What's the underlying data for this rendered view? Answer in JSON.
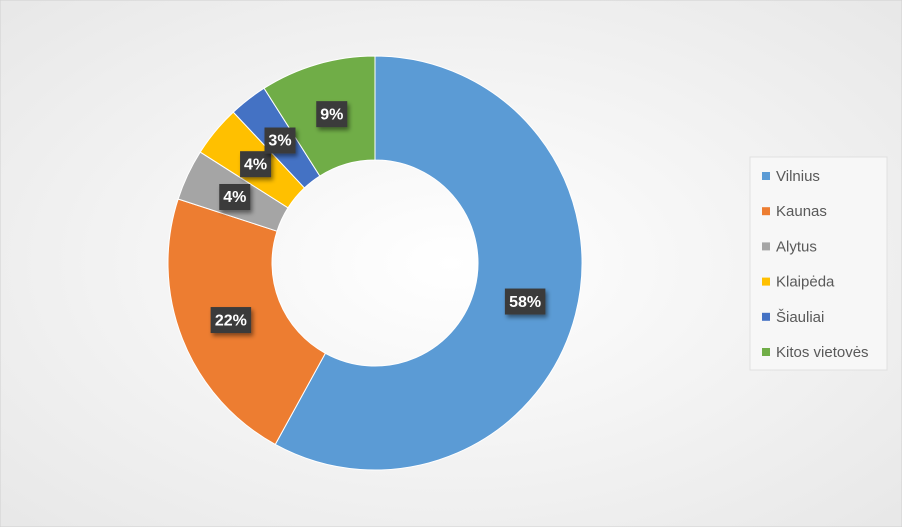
{
  "chart_data": {
    "type": "donut",
    "categories": [
      "Vilnius",
      "Kaunas",
      "Alytus",
      "Klaipėda",
      "Šiauliai",
      "Kitos vietovės"
    ],
    "values": [
      58,
      22,
      4,
      4,
      3,
      9
    ],
    "value_labels": [
      "58%",
      "22%",
      "4%",
      "4%",
      "3%",
      "9%"
    ],
    "colors": [
      "#5b9bd5",
      "#ed7d31",
      "#a5a5a5",
      "#ffc000",
      "#4472c4",
      "#70ad47"
    ],
    "legend": "right"
  }
}
